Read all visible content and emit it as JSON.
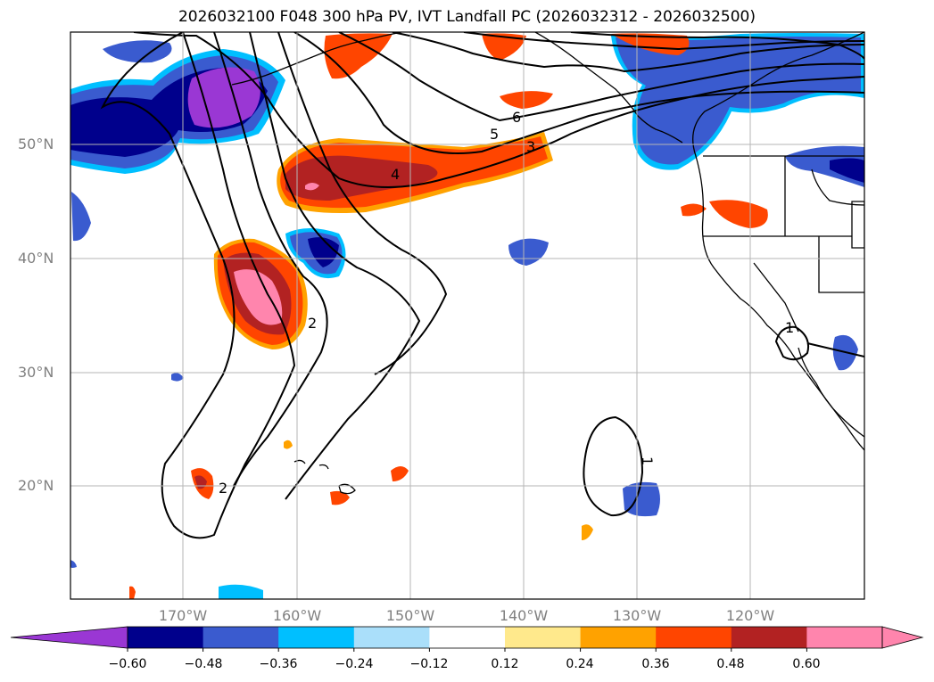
{
  "title": "2026032100 F048 300 hPa PV, IVT Landfall PC (2026032312 - 2026032500)",
  "map": {
    "lat_labels": [
      "50°N",
      "40°N",
      "30°N",
      "20°N"
    ],
    "lon_labels": [
      "170°W",
      "160°W",
      "150°W",
      "140°W",
      "130°W",
      "120°W"
    ],
    "contour_labels": [
      "6",
      "5",
      "3",
      "4",
      "2",
      "2",
      "1",
      "1"
    ]
  },
  "colorbar": {
    "ticks": [
      "−0.60",
      "−0.48",
      "−0.36",
      "−0.24",
      "−0.12",
      "0.12",
      "0.24",
      "0.36",
      "0.48",
      "0.60"
    ],
    "colors": [
      "#9a37d4",
      "#00008c",
      "#3a5bcf",
      "#00bfff",
      "#aadffa",
      "#ffffff",
      "#ffe98c",
      "#ffa200",
      "#ff4500",
      "#b22222",
      "#ff85ad",
      "#ff85ad"
    ]
  }
}
